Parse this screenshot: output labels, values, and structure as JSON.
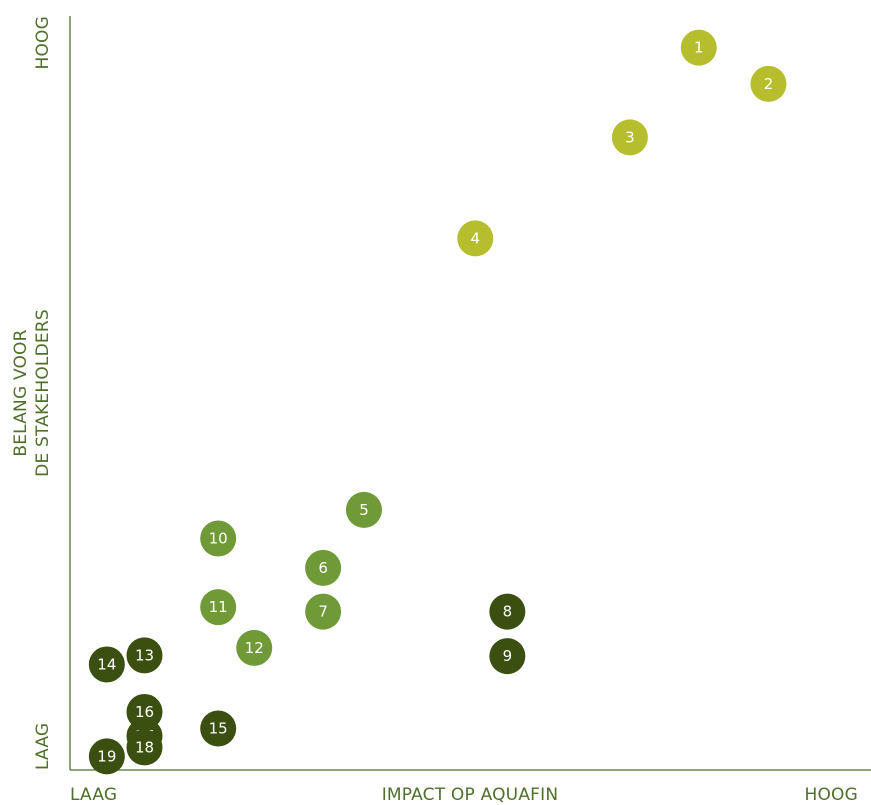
{
  "chart_data": {
    "type": "scatter",
    "title": "",
    "xlabel": "IMPACT OP AQUAFIN",
    "ylabel_lines": [
      "BELANG VOOR",
      "DE STAKEHOLDERS"
    ],
    "x_low_label": "LAAG",
    "x_high_label": "HOOG",
    "y_low_label": "LAAG",
    "y_high_label": "HOOG",
    "xlim": [
      0,
      100
    ],
    "ylim": [
      0,
      100
    ],
    "grid": false,
    "colors": {
      "axis": "#4f6f2a",
      "high": "#b7be2e",
      "medium": "#6f9a37",
      "low": "#3a4f10"
    },
    "points": [
      {
        "label": "1",
        "x": 78.5,
        "y": 95.8,
        "group": "high"
      },
      {
        "label": "2",
        "x": 87.2,
        "y": 91.0,
        "group": "high"
      },
      {
        "label": "3",
        "x": 69.9,
        "y": 83.9,
        "group": "high"
      },
      {
        "label": "4",
        "x": 50.6,
        "y": 70.5,
        "group": "high"
      },
      {
        "label": "5",
        "x": 36.7,
        "y": 34.5,
        "group": "medium"
      },
      {
        "label": "6",
        "x": 31.6,
        "y": 26.8,
        "group": "medium"
      },
      {
        "label": "7",
        "x": 31.6,
        "y": 21.0,
        "group": "medium"
      },
      {
        "label": "8",
        "x": 54.6,
        "y": 21.0,
        "group": "low"
      },
      {
        "label": "9",
        "x": 54.6,
        "y": 15.1,
        "group": "low"
      },
      {
        "label": "10",
        "x": 18.5,
        "y": 30.7,
        "group": "medium"
      },
      {
        "label": "11",
        "x": 18.5,
        "y": 21.6,
        "group": "medium"
      },
      {
        "label": "12",
        "x": 23.0,
        "y": 16.2,
        "group": "medium"
      },
      {
        "label": "13",
        "x": 9.3,
        "y": 15.2,
        "group": "low"
      },
      {
        "label": "14",
        "x": 4.6,
        "y": 14.0,
        "group": "low"
      },
      {
        "label": "15",
        "x": 18.5,
        "y": 5.5,
        "group": "low"
      },
      {
        "label": "16",
        "x": 9.3,
        "y": 7.7,
        "group": "low"
      },
      {
        "label": "17",
        "x": 9.3,
        "y": 4.5,
        "group": "low"
      },
      {
        "label": "18",
        "x": 9.3,
        "y": 3.0,
        "group": "low"
      },
      {
        "label": "19",
        "x": 4.6,
        "y": 1.8,
        "group": "low"
      }
    ]
  }
}
